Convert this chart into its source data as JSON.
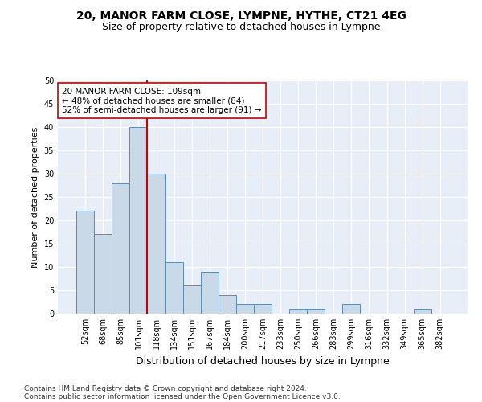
{
  "title": "20, MANOR FARM CLOSE, LYMPNE, HYTHE, CT21 4EG",
  "subtitle": "Size of property relative to detached houses in Lympne",
  "xlabel": "Distribution of detached houses by size in Lympne",
  "ylabel": "Number of detached properties",
  "categories": [
    "52sqm",
    "68sqm",
    "85sqm",
    "101sqm",
    "118sqm",
    "134sqm",
    "151sqm",
    "167sqm",
    "184sqm",
    "200sqm",
    "217sqm",
    "233sqm",
    "250sqm",
    "266sqm",
    "283sqm",
    "299sqm",
    "316sqm",
    "332sqm",
    "349sqm",
    "365sqm",
    "382sqm"
  ],
  "values": [
    22,
    17,
    28,
    40,
    30,
    11,
    6,
    9,
    4,
    2,
    2,
    0,
    1,
    1,
    0,
    2,
    0,
    0,
    0,
    1,
    0
  ],
  "bar_color": "#c9d9e8",
  "bar_edge_color": "#5b8db8",
  "vline_x": 3.5,
  "vline_color": "#cc0000",
  "annotation_text": "20 MANOR FARM CLOSE: 109sqm\n← 48% of detached houses are smaller (84)\n52% of semi-detached houses are larger (91) →",
  "annotation_box_color": "#ffffff",
  "annotation_box_edge": "#cc0000",
  "ylim": [
    0,
    50
  ],
  "yticks": [
    0,
    5,
    10,
    15,
    20,
    25,
    30,
    35,
    40,
    45,
    50
  ],
  "footer1": "Contains HM Land Registry data © Crown copyright and database right 2024.",
  "footer2": "Contains public sector information licensed under the Open Government Licence v3.0.",
  "background_color": "#e8eef7",
  "title_fontsize": 10,
  "subtitle_fontsize": 9,
  "xlabel_fontsize": 9,
  "ylabel_fontsize": 8,
  "tick_fontsize": 7,
  "annotation_fontsize": 7.5,
  "footer_fontsize": 6.5
}
